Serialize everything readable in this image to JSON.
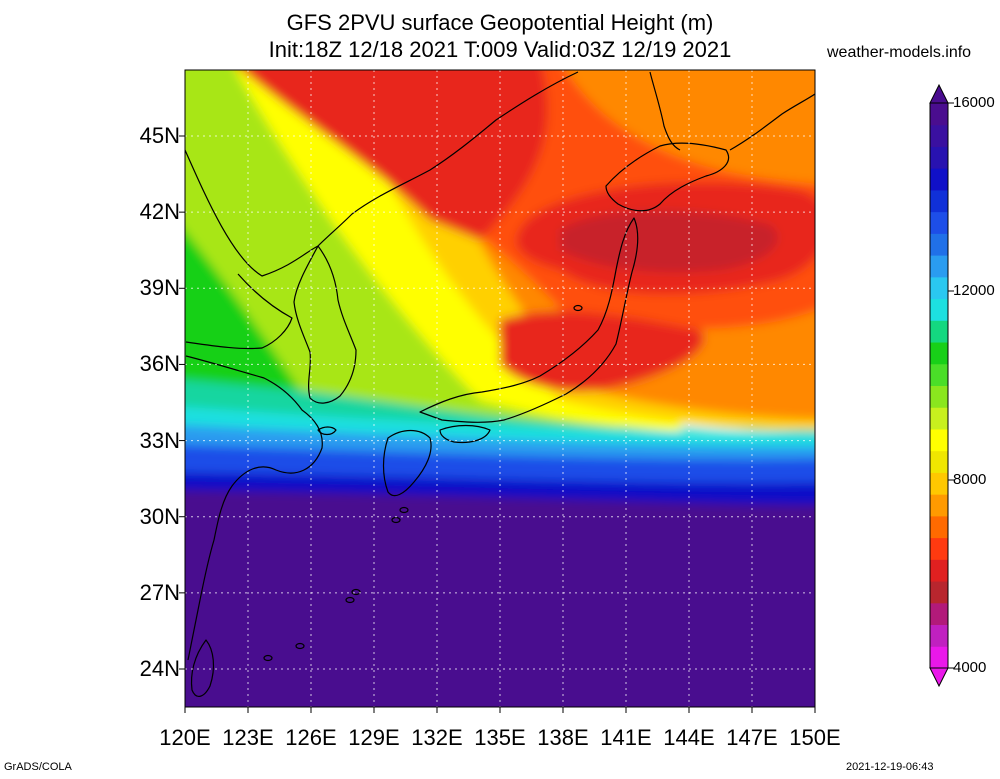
{
  "header": {
    "title_line1": "GFS 2PVU surface Geopotential Height (m)",
    "title_line2": "Init:18Z 12/18 2021 T:009 Valid:03Z 12/19 2021",
    "site": "weather-models.info"
  },
  "map": {
    "lat_labels": [
      "45N",
      "42N",
      "39N",
      "36N",
      "33N",
      "30N",
      "27N",
      "24N"
    ],
    "lon_labels": [
      "120E",
      "123E",
      "126E",
      "129E",
      "132E",
      "135E",
      "138E",
      "141E",
      "144E",
      "147E",
      "150E"
    ],
    "colors": {
      "purple": "#4a0d8f",
      "deep_blue": "#1010c8",
      "blue": "#1d4ee8",
      "sky": "#2a9cf0",
      "cyan": "#1de0e0",
      "teal": "#13d6a0",
      "green": "#18d018",
      "lime": "#a8e614",
      "yellow": "#ffff00",
      "gold": "#ffd000",
      "orange": "#ff8800",
      "orange_red": "#ff4f10",
      "red": "#e8261a",
      "dark_red": "#c8202a"
    }
  },
  "colorbar": {
    "labels": [
      "16000",
      "12000",
      "8000",
      "4000"
    ],
    "bands": [
      "#ea18ea",
      "#c020c0",
      "#b21a7a",
      "#b8262e",
      "#e02020",
      "#ff3a10",
      "#ff6a00",
      "#ff9a00",
      "#ffc800",
      "#f0e600",
      "#ffff00",
      "#c8f01e",
      "#8ae61e",
      "#4ade28",
      "#18d018",
      "#14d880",
      "#1de0e0",
      "#2ac8f0",
      "#2a9cf0",
      "#2070e8",
      "#1d4ee8",
      "#1030d8",
      "#1010c8",
      "#2812b0",
      "#3a10a0",
      "#4a0d8f"
    ]
  },
  "footer": {
    "left": "GrADS/COLA",
    "right": "2021-12-19-06:43"
  }
}
